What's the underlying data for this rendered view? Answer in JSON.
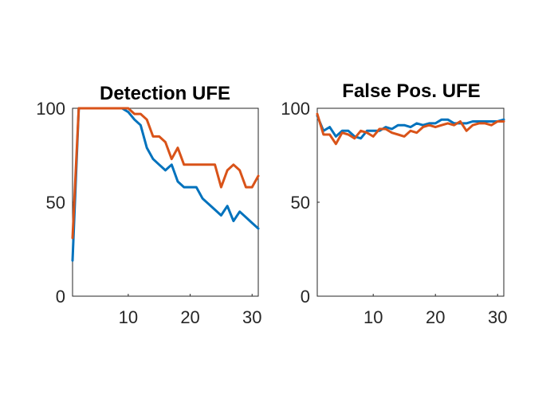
{
  "chart_data": [
    {
      "type": "line",
      "title": "Detection UFE",
      "xlabel": "",
      "ylabel": "",
      "xlim": [
        1,
        31
      ],
      "ylim": [
        0,
        100
      ],
      "xticks": [
        10,
        20,
        30
      ],
      "yticks": [
        0,
        50,
        100
      ],
      "grid": false,
      "series": [
        {
          "color": "#0072BD",
          "x": [
            1,
            2,
            3,
            4,
            5,
            6,
            7,
            8,
            9,
            10,
            11,
            12,
            13,
            14,
            15,
            16,
            17,
            18,
            19,
            20,
            21,
            22,
            23,
            24,
            25,
            26,
            27,
            28,
            29,
            30,
            31
          ],
          "y": [
            19,
            100,
            100,
            100,
            100,
            100,
            100,
            100,
            100,
            98,
            94,
            91,
            79,
            73,
            70,
            67,
            70,
            61,
            58,
            58,
            58,
            52,
            49,
            46,
            43,
            48,
            40,
            45,
            42,
            39,
            36
          ]
        },
        {
          "color": "#D95319",
          "x": [
            1,
            2,
            3,
            4,
            5,
            6,
            7,
            8,
            9,
            10,
            11,
            12,
            13,
            14,
            15,
            16,
            17,
            18,
            19,
            20,
            21,
            22,
            23,
            24,
            25,
            26,
            27,
            28,
            29,
            30,
            31
          ],
          "y": [
            31,
            100,
            100,
            100,
            100,
            100,
            100,
            100,
            100,
            100,
            97,
            97,
            94,
            85,
            85,
            82,
            73,
            79,
            70,
            70,
            70,
            70,
            70,
            70,
            58,
            67,
            70,
            67,
            58,
            58,
            64
          ]
        }
      ]
    },
    {
      "type": "line",
      "title": "False Pos. UFE",
      "xlabel": "",
      "ylabel": "",
      "xlim": [
        1,
        31
      ],
      "ylim": [
        0,
        100
      ],
      "xticks": [
        10,
        20,
        30
      ],
      "yticks": [
        0,
        50,
        100
      ],
      "grid": false,
      "series": [
        {
          "color": "#0072BD",
          "x": [
            1,
            2,
            3,
            4,
            5,
            6,
            7,
            8,
            9,
            10,
            11,
            12,
            13,
            14,
            15,
            16,
            17,
            18,
            19,
            20,
            21,
            22,
            23,
            24,
            25,
            26,
            27,
            28,
            29,
            30,
            31
          ],
          "y": [
            96,
            88,
            90,
            85,
            88,
            88,
            85,
            84,
            88,
            88,
            88,
            90,
            89,
            91,
            91,
            90,
            92,
            91,
            92,
            92,
            94,
            94,
            92,
            92,
            92,
            93,
            93,
            93,
            93,
            93,
            94
          ]
        },
        {
          "color": "#D95319",
          "x": [
            1,
            2,
            3,
            4,
            5,
            6,
            7,
            8,
            9,
            10,
            11,
            12,
            13,
            14,
            15,
            16,
            17,
            18,
            19,
            20,
            21,
            22,
            23,
            24,
            25,
            26,
            27,
            28,
            29,
            30,
            31
          ],
          "y": [
            97,
            86,
            86,
            81,
            87,
            86,
            84,
            88,
            87,
            85,
            89,
            89,
            87,
            86,
            85,
            88,
            87,
            90,
            91,
            90,
            91,
            92,
            91,
            93,
            88,
            91,
            92,
            92,
            91,
            93,
            93
          ]
        }
      ]
    }
  ]
}
